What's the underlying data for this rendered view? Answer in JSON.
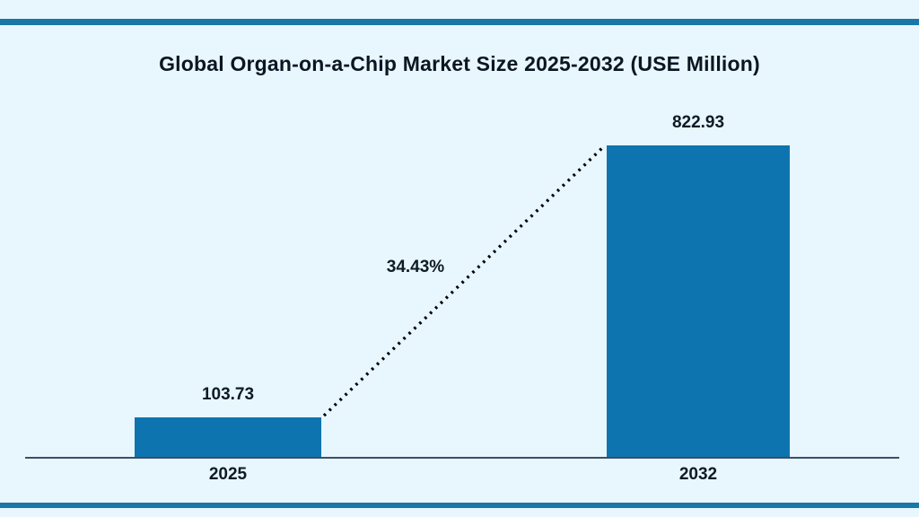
{
  "page": {
    "background_color": "#e8f6fd",
    "stripe_color": "#1878a8"
  },
  "chart_data": {
    "type": "bar",
    "title": "Global Organ-on-a-Chip Market Size 2025-2032 (USE Million)",
    "categories": [
      "2025",
      "2032"
    ],
    "values": [
      103.73,
      822.93
    ],
    "value_labels": [
      "103.73",
      "822.93"
    ],
    "annotation": {
      "label": "34.43%",
      "style": "dotted-growth-line",
      "line_color": "#000000"
    },
    "bar_color": "#0e74b0",
    "axis_color": "#3d4f63",
    "text_color": "#0d1b24",
    "ylim": [
      0,
      870
    ],
    "grid": false,
    "legend": false,
    "xlabel": "",
    "ylabel": ""
  }
}
